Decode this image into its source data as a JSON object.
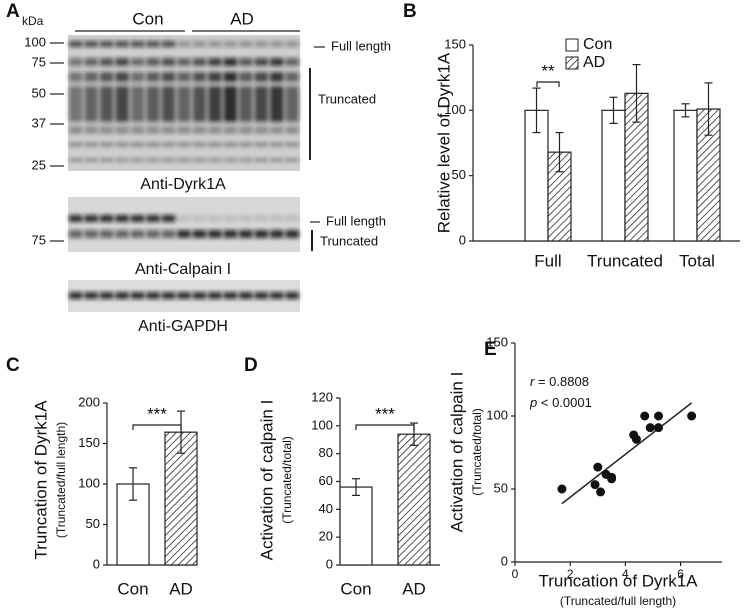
{
  "blots": {
    "letter": "A",
    "unit": "kDa",
    "groups": [
      "Con",
      "AD"
    ],
    "markers": [
      100,
      75,
      50,
      37,
      25
    ],
    "dyrk1a_bands": [
      "Full length",
      "Truncated"
    ],
    "dyrk1a_label": "Anti-Dyrk1A",
    "calpain_marker": 75,
    "calpain_bands": [
      "Full length",
      "Truncated"
    ],
    "calpain_label": "Anti-Calpain I",
    "gapdh_label": "Anti-GAPDH"
  },
  "chart_data": [
    {
      "type": "bar",
      "letter": "B",
      "ylabel": "Relative level of Dyrk1A",
      "categories": [
        "Full",
        "Truncated",
        "Total"
      ],
      "series": [
        {
          "name": "Con",
          "color": "#ffffff",
          "hatched": false,
          "values": [
            100,
            100,
            100
          ],
          "errors": [
            17,
            10,
            5
          ]
        },
        {
          "name": "AD",
          "color": "#ffffff",
          "hatched": true,
          "values": [
            68,
            113,
            101
          ],
          "errors": [
            15,
            22,
            20
          ]
        }
      ],
      "annotation": "**",
      "ylim": [
        0,
        150
      ],
      "yticks": [
        0,
        50,
        100,
        150
      ],
      "legend": "top-right"
    },
    {
      "type": "bar",
      "letter": "C",
      "ylabel": "Truncation of Dyrk1A",
      "ylabel_sub": "(Truncated/full length)",
      "categories": [
        "Con",
        "AD"
      ],
      "values": [
        100,
        164
      ],
      "errors": [
        20,
        26
      ],
      "hatched": [
        false,
        true
      ],
      "annotation": "***",
      "ylim": [
        0,
        200
      ],
      "yticks": [
        0,
        50,
        100,
        150,
        200
      ]
    },
    {
      "type": "bar",
      "letter": "D",
      "ylabel": "Activation of calpain I",
      "ylabel_sub": "(Truncated/total)",
      "categories": [
        "Con",
        "AD"
      ],
      "values": [
        56,
        94
      ],
      "errors": [
        6,
        8
      ],
      "hatched": [
        false,
        true
      ],
      "annotation": "***",
      "ylim": [
        0,
        120
      ],
      "yticks": [
        0,
        20,
        40,
        60,
        80,
        100,
        120
      ]
    },
    {
      "type": "scatter",
      "letter": "E",
      "ylabel": "Activation of calpain I",
      "ylabel_sub": "(Truncated/total)",
      "xlabel": "Truncation of Dyrk1A",
      "xlabel_sub": "(Truncated/full length)",
      "stats": [
        {
          "symbol": "r",
          "text": "= 0.8808"
        },
        {
          "symbol": "p",
          "text": "< 0.0001"
        }
      ],
      "x": [
        1.7,
        2.9,
        3.0,
        3.1,
        3.3,
        3.5,
        3.5,
        4.3,
        4.4,
        4.7,
        4.9,
        5.2,
        5.2,
        6.4
      ],
      "y": [
        50,
        53,
        65,
        48,
        60,
        58,
        57,
        87,
        84,
        100,
        92,
        100,
        92,
        100
      ],
      "color": "#111111",
      "trend": {
        "x": [
          1.7,
          6.4
        ],
        "y": [
          40,
          109
        ]
      },
      "xlim": [
        0,
        7.5
      ],
      "xticks": [
        0,
        2,
        4,
        6
      ],
      "ylim": [
        0,
        150
      ],
      "yticks": [
        0,
        50,
        100,
        150
      ]
    }
  ]
}
